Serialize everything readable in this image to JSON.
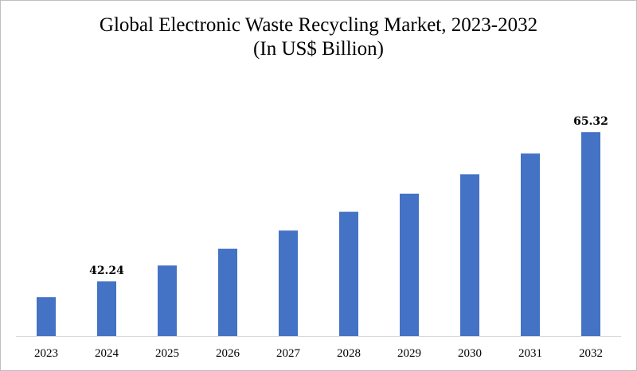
{
  "chart_data": {
    "type": "bar",
    "title": "Global Electronic Waste Recycling Market, 2023-2032",
    "subtitle": "(In US$ Billion)",
    "xlabel": "",
    "ylabel": "",
    "categories": [
      "2023",
      "2024",
      "2025",
      "2026",
      "2027",
      "2028",
      "2029",
      "2030",
      "2031",
      "2032"
    ],
    "values": [
      39.8,
      42.24,
      44.7,
      47.3,
      50.1,
      53.0,
      55.8,
      58.8,
      62.0,
      65.32
    ],
    "data_labels": [
      {
        "index": 1,
        "text": "42.24"
      },
      {
        "index": 9,
        "text": "65.32"
      }
    ],
    "ylim": [
      33.8,
      66.7
    ],
    "grid": false,
    "legend": "none",
    "bar_color": "#4472c4",
    "axis_color": "#d9d9d9"
  }
}
